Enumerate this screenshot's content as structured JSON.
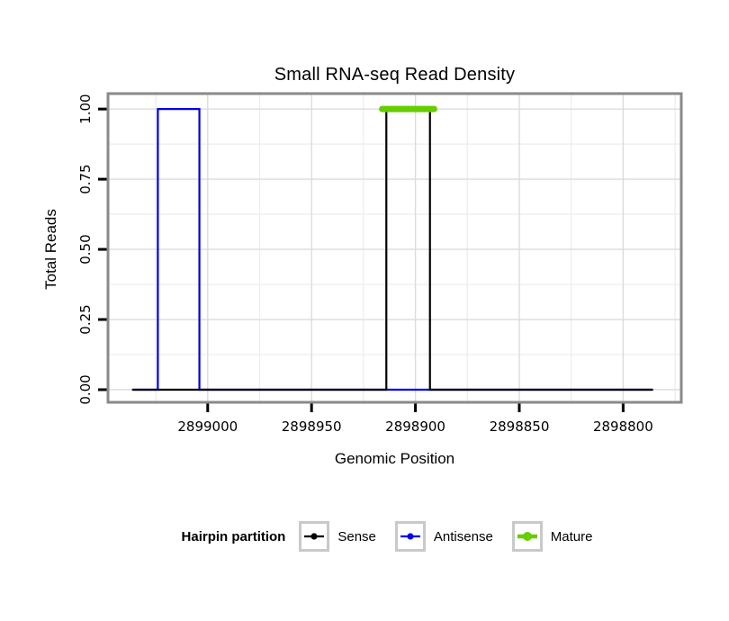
{
  "chart_data": {
    "type": "line",
    "title": "Small RNA-seq Read Density",
    "xlabel": "Genomic Position",
    "ylabel": "Total Reads",
    "x_reversed": true,
    "xlim": [
      2899048,
      2898772
    ],
    "ylim": [
      -0.045,
      1.055
    ],
    "x_ticks": [
      {
        "value": 2899000,
        "label": "2899000"
      },
      {
        "value": 2898950,
        "label": "2898950"
      },
      {
        "value": 2898900,
        "label": "2898900"
      },
      {
        "value": 2898850,
        "label": "2898850"
      },
      {
        "value": 2898800,
        "label": "2898800"
      }
    ],
    "x_minor": [
      2899025,
      2898975,
      2898925,
      2898875,
      2898825,
      2898775
    ],
    "y_ticks": [
      {
        "value": 0,
        "label": "0.00"
      },
      {
        "value": 0.25,
        "label": "0.25"
      },
      {
        "value": 0.5,
        "label": "0.50"
      },
      {
        "value": 0.75,
        "label": "0.75"
      },
      {
        "value": 1,
        "label": "1.00"
      }
    ],
    "y_minor": [
      0.125,
      0.375,
      0.625,
      0.875
    ],
    "grid": true,
    "legend": {
      "title": "Hairpin partition",
      "position": "bottom"
    },
    "series": [
      {
        "name": "Sense",
        "color": "#000000",
        "width": 2.2,
        "z": 2,
        "points": [
          [
            2899036,
            0
          ],
          [
            2898914,
            0
          ],
          [
            2898914,
            1
          ],
          [
            2898893,
            1
          ],
          [
            2898893,
            0
          ],
          [
            2898786,
            0
          ]
        ]
      },
      {
        "name": "Antisense",
        "color": "#0000EE",
        "width": 2.2,
        "z": 1,
        "points": [
          [
            2899036,
            0
          ],
          [
            2899024,
            0
          ],
          [
            2899024,
            1
          ],
          [
            2899004,
            1
          ],
          [
            2899004,
            0
          ],
          [
            2898786,
            0
          ]
        ]
      },
      {
        "name": "Mature",
        "color": "#66CD00",
        "width": 7,
        "z": 3,
        "points": [
          [
            2898916,
            1
          ],
          [
            2898891,
            1
          ]
        ]
      }
    ],
    "colors": {
      "panel_border": "#8A8A8A",
      "grid_major": "#DCDCDC",
      "grid_minor": "#EEEEEE",
      "tick": "#000000",
      "legend_key_border": "#C9C9C9"
    }
  }
}
